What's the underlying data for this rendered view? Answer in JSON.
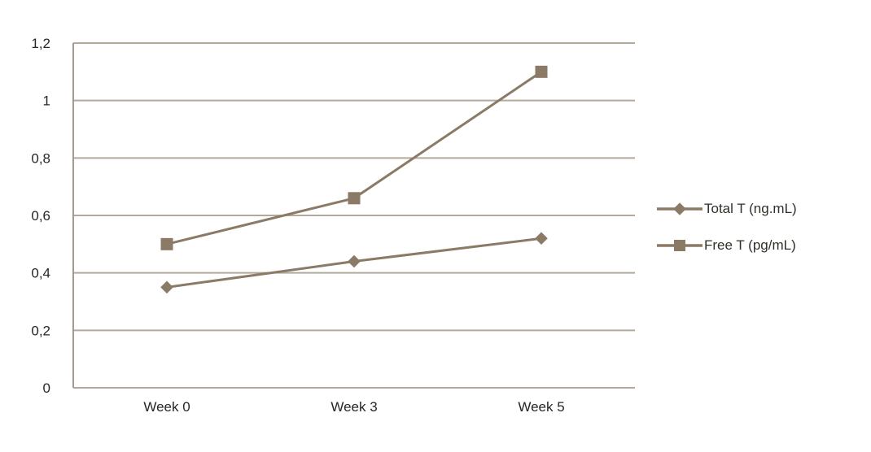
{
  "chart_data": {
    "type": "line",
    "categories": [
      "Week 0",
      "Week 3",
      "Week 5"
    ],
    "series": [
      {
        "name": "Total T (ng.mL)",
        "values": [
          0.35,
          0.44,
          0.52
        ],
        "marker": "diamond",
        "color": "#8a7a66"
      },
      {
        "name": "Free T (pg/mL)",
        "values": [
          0.5,
          0.66,
          1.1
        ],
        "marker": "square",
        "color": "#8a7a66"
      }
    ],
    "ylim": [
      0,
      1.2
    ],
    "ytick_step": 0.2,
    "ytick_labels": [
      "0",
      "0,2",
      "0,4",
      "0,6",
      "0,8",
      "1",
      "1,2"
    ],
    "decimal_separator": ",",
    "grid": true,
    "legend_position": "right",
    "colors": {
      "gridline": "#b3a99b",
      "axis": "#a39a8c",
      "tick_text": "#262626",
      "background": "#ffffff"
    }
  }
}
